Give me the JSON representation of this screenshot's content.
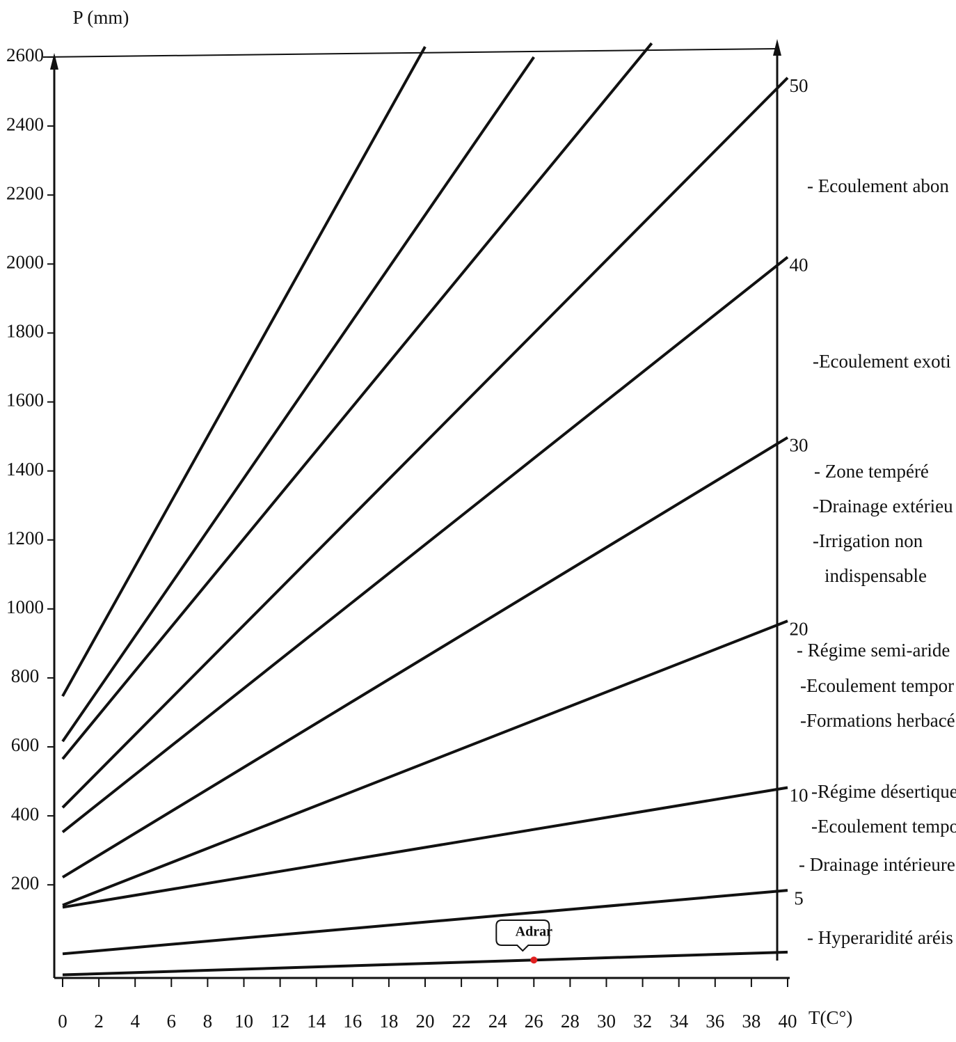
{
  "chart_data": {
    "type": "line",
    "y_label": "P (mm)",
    "x_label": "T(C°)",
    "xlim": [
      0,
      40
    ],
    "xticks": [
      0,
      2,
      4,
      6,
      8,
      10,
      12,
      14,
      16,
      18,
      20,
      22,
      24,
      26,
      28,
      30,
      32,
      34,
      36,
      38,
      40
    ],
    "ylim": [
      -70,
      2600
    ],
    "yticks": [
      200,
      400,
      600,
      800,
      1000,
      1200,
      1400,
      1600,
      1800,
      2000,
      2200,
      2400,
      2600
    ],
    "color": "#111111",
    "series": [
      {
        "x": [
          0,
          20
        ],
        "values": [
          747,
          2630
        ]
      },
      {
        "x": [
          0,
          26
        ],
        "values": [
          616,
          2600
        ]
      },
      {
        "x": [
          0,
          32.5
        ],
        "values": [
          565,
          2640
        ]
      },
      {
        "name": "50",
        "x": [
          0,
          40
        ],
        "values": [
          424,
          2540
        ]
      },
      {
        "name": "40",
        "x": [
          0,
          40
        ],
        "values": [
          353,
          2020
        ]
      },
      {
        "name": "30",
        "x": [
          0,
          40
        ],
        "values": [
          222,
          1497
        ]
      },
      {
        "name": "20",
        "x": [
          0,
          40
        ],
        "values": [
          141,
          965
        ]
      },
      {
        "name": "10",
        "x": [
          0,
          40
        ],
        "values": [
          135,
          482
        ]
      },
      {
        "name": "5",
        "x": [
          0,
          40
        ],
        "values": [
          0,
          184
        ]
      },
      {
        "x": [
          0,
          40
        ],
        "values": [
          -61,
          5
        ]
      }
    ],
    "point": {
      "label": "Adrar",
      "x": 26,
      "value": -18,
      "color": "#e02020"
    },
    "annotations": [
      "- Ecoulement abon",
      "-Ecoulement exoti",
      "- Zone tempéré",
      "-Drainage extérieu",
      "-Irrigation non",
      "indispensable",
      "- Régime semi-aride",
      "-Ecoulement tempor",
      "-Formations herbacé",
      "-Régime désertique",
      "-Ecoulement tempo",
      "- Drainage intérieure",
      "- Hyperaridité aréis"
    ]
  }
}
